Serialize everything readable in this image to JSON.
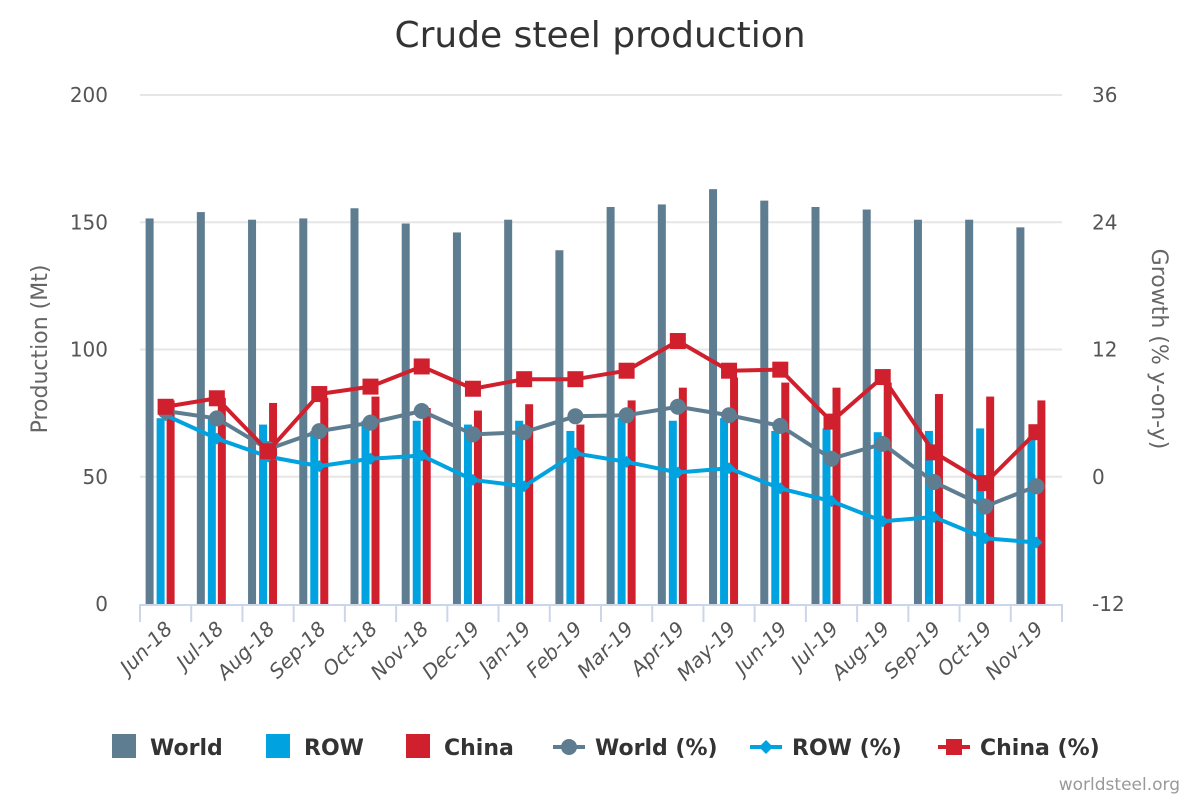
{
  "chart_data": {
    "type": "bar",
    "title": "Crude steel production",
    "categories": [
      "Jun-18",
      "Jul-18",
      "Aug-18",
      "Sep-18",
      "Oct-18",
      "Nov-18",
      "Dec-19",
      "Jan-19",
      "Feb-19",
      "Mar-19",
      "Apr-19",
      "May-19",
      "Jun-19",
      "Jul-19",
      "Aug-19",
      "Sep-19",
      "Oct-19",
      "Nov-19"
    ],
    "y_left": {
      "label": "Production (Mt)",
      "range": [
        0,
        200
      ],
      "ticks": [
        "0",
        "50",
        "100",
        "150",
        "200"
      ]
    },
    "y_right": {
      "label": "Growth (% y-on-y)",
      "range": [
        -12,
        36
      ],
      "ticks": [
        "-12",
        "0",
        "12",
        "24",
        "36"
      ]
    },
    "grid": true,
    "legend_position": "bottom",
    "series": [
      {
        "name": "World",
        "kind": "bar",
        "axis": "left",
        "color": "#5f7d91",
        "values": [
          151.5,
          154,
          151,
          151.5,
          155.5,
          149.5,
          146,
          151,
          139,
          156,
          157,
          163,
          158.5,
          156,
          155,
          151,
          151,
          148
        ]
      },
      {
        "name": "ROW",
        "kind": "bar",
        "axis": "left",
        "color": "#00a3e0",
        "values": [
          73,
          73,
          70.5,
          68,
          72,
          72,
          70.5,
          72,
          68,
          73,
          72,
          73,
          68,
          69,
          67.5,
          68,
          69,
          65.5
        ]
      },
      {
        "name": "China",
        "kind": "bar",
        "axis": "left",
        "color": "#d0202e",
        "values": [
          80,
          81,
          79,
          81,
          81.5,
          77,
          76,
          78.5,
          70.5,
          80,
          85,
          89,
          87,
          85,
          87,
          82.5,
          81.5,
          80
        ]
      },
      {
        "name": "World (%)",
        "kind": "line",
        "marker": "circle",
        "axis": "right",
        "color": "#5f7d91",
        "values": [
          6.2,
          5.5,
          2.6,
          4.3,
          5.1,
          6.2,
          4.0,
          4.2,
          5.7,
          5.8,
          6.6,
          5.8,
          4.8,
          1.7,
          3.1,
          -0.5,
          -2.8,
          -0.9
        ]
      },
      {
        "name": "ROW (%)",
        "kind": "line",
        "marker": "diamond",
        "axis": "right",
        "color": "#00a3e0",
        "values": [
          5.8,
          3.6,
          1.9,
          1.0,
          1.7,
          2.0,
          -0.3,
          -0.9,
          2.2,
          1.4,
          0.4,
          0.8,
          -1.1,
          -2.3,
          -4.2,
          -3.8,
          -5.8,
          -6.2
        ]
      },
      {
        "name": "China (%)",
        "kind": "line",
        "marker": "square",
        "axis": "right",
        "color": "#d0202e",
        "values": [
          6.6,
          7.4,
          2.4,
          7.8,
          8.5,
          10.4,
          8.3,
          9.2,
          9.2,
          10.0,
          12.8,
          10.0,
          10.1,
          5.2,
          9.4,
          2.3,
          -0.6,
          4.2
        ]
      }
    ],
    "credit": "worldsteel.org"
  }
}
